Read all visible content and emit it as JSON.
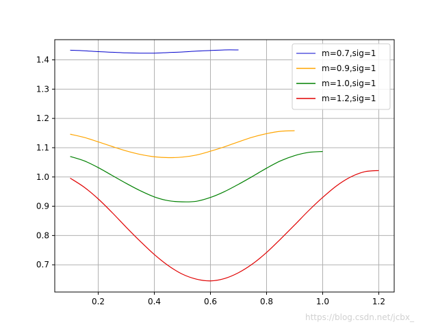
{
  "chart_data": {
    "type": "line",
    "xlim": [
      0.045,
      1.255
    ],
    "ylim": [
      0.607,
      1.469
    ],
    "xticks": [
      0.2,
      0.4,
      0.6,
      0.8,
      1.0,
      1.2
    ],
    "xtick_labels": [
      "0.2",
      "0.4",
      "0.6",
      "0.8",
      "1.0",
      "1.2"
    ],
    "yticks": [
      0.7,
      0.8,
      0.9,
      1.0,
      1.1,
      1.2,
      1.3,
      1.4
    ],
    "ytick_labels": [
      "0.7",
      "0.8",
      "0.9",
      "1.0",
      "1.1",
      "1.2",
      "1.3",
      "1.4"
    ],
    "grid": true,
    "legend_position": "top-right",
    "series": [
      {
        "name": "m=0.7,sig=1",
        "color": "#0000cc",
        "x": [
          0.1,
          0.15,
          0.2,
          0.25,
          0.3,
          0.35,
          0.4,
          0.45,
          0.5,
          0.55,
          0.6,
          0.65,
          0.7
        ],
        "y": [
          1.433,
          1.431,
          1.428,
          1.426,
          1.424,
          1.423,
          1.423,
          1.425,
          1.427,
          1.43,
          1.432,
          1.434,
          1.434
        ]
      },
      {
        "name": "m=0.9,sig=1",
        "color": "#ffa500",
        "x": [
          0.1,
          0.15,
          0.2,
          0.25,
          0.3,
          0.35,
          0.4,
          0.45,
          0.5,
          0.55,
          0.6,
          0.65,
          0.7,
          0.75,
          0.8,
          0.85,
          0.9
        ],
        "y": [
          1.146,
          1.135,
          1.12,
          1.104,
          1.089,
          1.077,
          1.069,
          1.066,
          1.068,
          1.075,
          1.088,
          1.103,
          1.12,
          1.136,
          1.148,
          1.156,
          1.158
        ]
      },
      {
        "name": "m=1.0,sig=1",
        "color": "#008000",
        "x": [
          0.1,
          0.15,
          0.2,
          0.25,
          0.3,
          0.35,
          0.4,
          0.45,
          0.5,
          0.55,
          0.6,
          0.65,
          0.7,
          0.75,
          0.8,
          0.85,
          0.9,
          0.95,
          1.0
        ],
        "y": [
          1.07,
          1.055,
          1.032,
          1.005,
          0.978,
          0.953,
          0.932,
          0.919,
          0.915,
          0.917,
          0.93,
          0.95,
          0.975,
          1.002,
          1.03,
          1.055,
          1.073,
          1.084,
          1.087
        ]
      },
      {
        "name": "m=1.2,sig=1",
        "color": "#e00000",
        "x": [
          0.1,
          0.15,
          0.2,
          0.25,
          0.3,
          0.35,
          0.4,
          0.45,
          0.5,
          0.55,
          0.6,
          0.65,
          0.7,
          0.75,
          0.8,
          0.85,
          0.9,
          0.95,
          1.0,
          1.05,
          1.1,
          1.15,
          1.2
        ],
        "y": [
          0.996,
          0.965,
          0.925,
          0.878,
          0.828,
          0.78,
          0.735,
          0.697,
          0.668,
          0.651,
          0.645,
          0.653,
          0.673,
          0.703,
          0.742,
          0.788,
          0.836,
          0.885,
          0.93,
          0.97,
          1.0,
          1.018,
          1.022
        ]
      }
    ]
  },
  "watermark": {
    "text": "https://blog.csdn.net/jcbx_",
    "color": "#d0d0d0"
  }
}
